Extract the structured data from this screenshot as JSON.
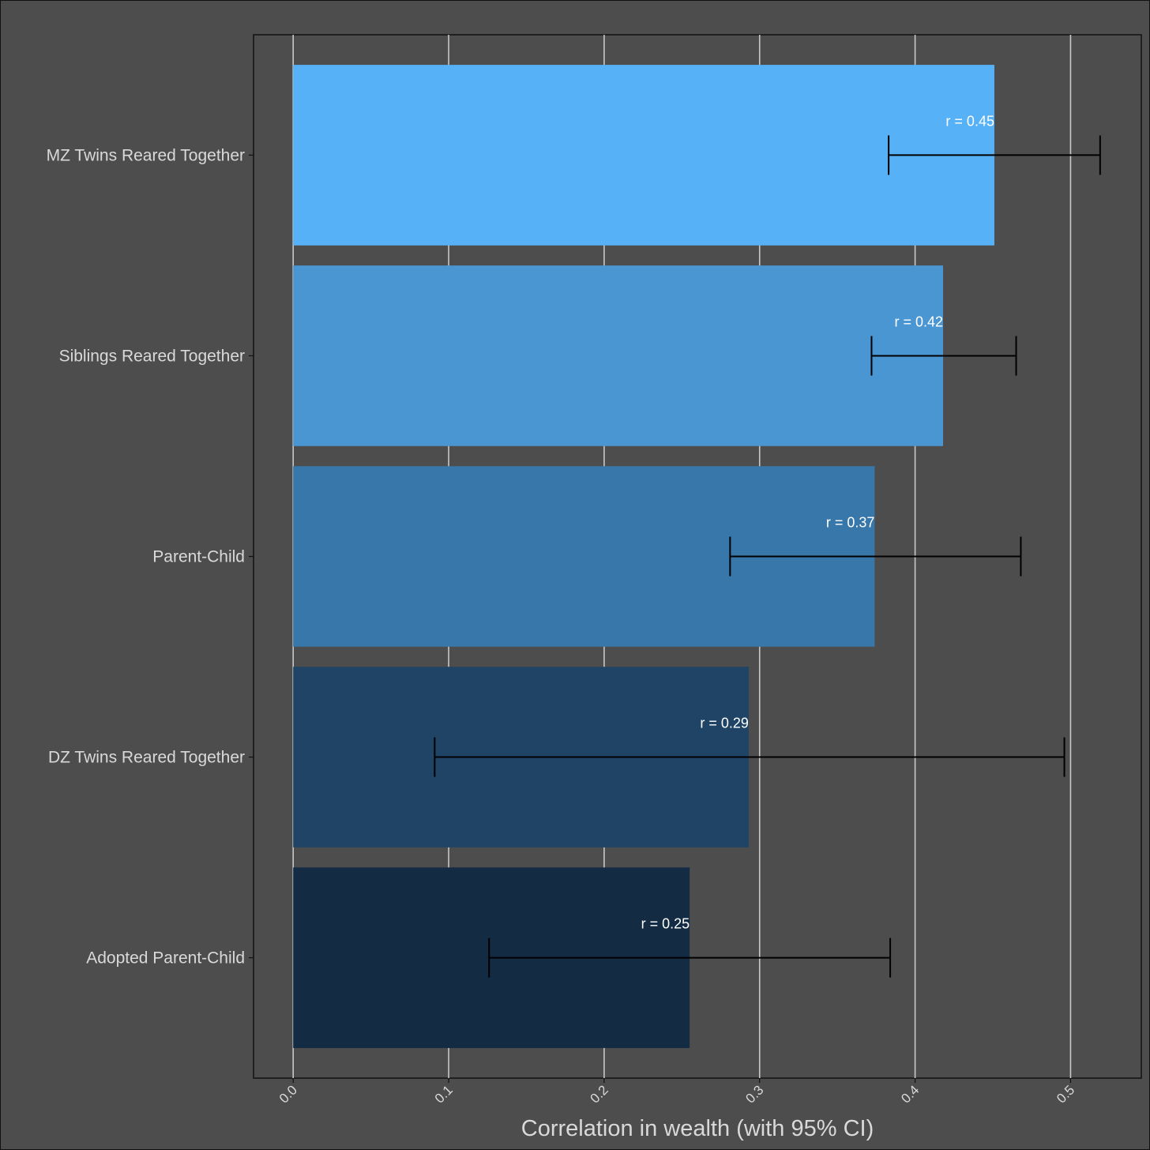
{
  "chart_data": {
    "type": "bar",
    "orientation": "horizontal",
    "title": "",
    "xlabel": "Correlation in wealth (with 95% CI)",
    "ylabel": "",
    "xlim": [
      -0.0255,
      0.5455
    ],
    "xticks": [
      "0.0",
      "0.1",
      "0.2",
      "0.3",
      "0.4",
      "0.5"
    ],
    "grid": true,
    "categories": [
      "MZ Twins Reared Together",
      "Siblings Reared Together",
      "Parent-Child",
      "DZ Twins Reared Together",
      "Adopted Parent-Child"
    ],
    "values": [
      0.451,
      0.418,
      0.374,
      0.293,
      0.255
    ],
    "ci_low": [
      0.383,
      0.372,
      0.281,
      0.091,
      0.126
    ],
    "ci_high": [
      0.519,
      0.465,
      0.468,
      0.496,
      0.384
    ],
    "labels": [
      "r = 0.45",
      "r = 0.42",
      "r = 0.37",
      "r = 0.29",
      "r = 0.25"
    ],
    "colors": [
      "#56b1f7",
      "#4a96d3",
      "#3877a9",
      "#1f4466",
      "#132b43"
    ]
  }
}
